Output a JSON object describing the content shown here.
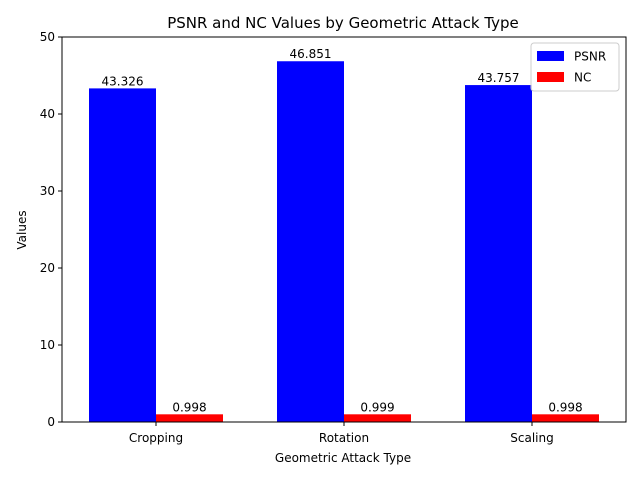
{
  "chart_data": {
    "type": "bar",
    "title": "PSNR and NC Values by Geometric Attack Type",
    "xlabel": "Geometric Attack Type",
    "ylabel": "Values",
    "categories": [
      "Cropping",
      "Rotation",
      "Scaling"
    ],
    "series": [
      {
        "name": "PSNR",
        "values": [
          43.326,
          46.851,
          43.757
        ],
        "labels": [
          "43.326",
          "46.851",
          "43.757"
        ],
        "color": "#0000ff"
      },
      {
        "name": "NC",
        "values": [
          0.998,
          0.999,
          0.998
        ],
        "labels": [
          "0.998",
          "0.999",
          "0.998"
        ],
        "color": "#ff0000"
      }
    ],
    "ylim": [
      0,
      50
    ],
    "yticks": [
      0,
      10,
      20,
      30,
      40,
      50
    ],
    "grid": false,
    "legend_position": "top-right"
  }
}
